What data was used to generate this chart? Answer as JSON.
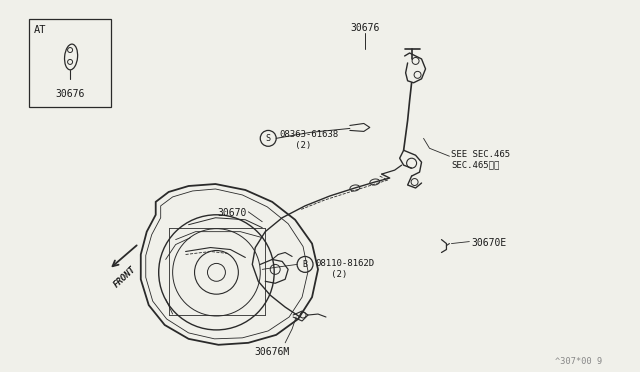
{
  "bg_color": "#f0f0ea",
  "line_color": "#2a2a2a",
  "text_color": "#1a1a1a",
  "watermark": "^307*00 9",
  "labels": {
    "30676_top": "30676",
    "30676_box": "30676",
    "08363": "08363-61638\n   (2)",
    "30670": "30670",
    "see_sec": "SEE SEC.465\nSEC.465参照",
    "30670E": "30670E",
    "08110": "08110-8162D\n   (2)",
    "30676M": "30676M",
    "front": "FRONT",
    "AT": "AT"
  }
}
